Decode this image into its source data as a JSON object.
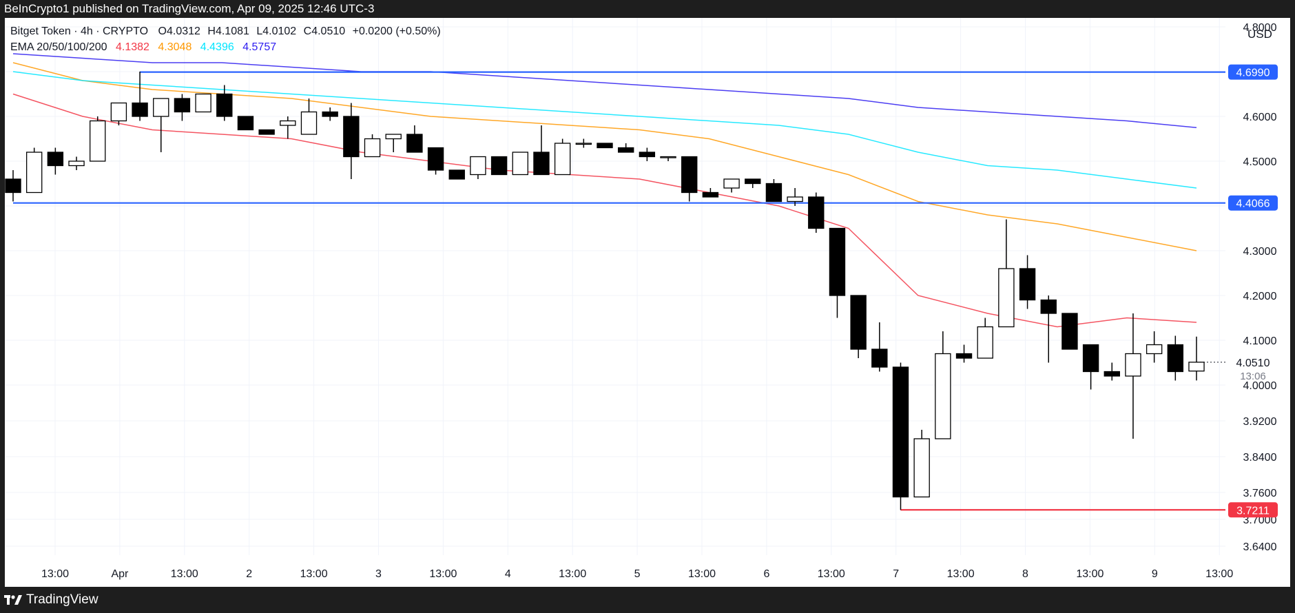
{
  "header": {
    "publisher_line": "BeInCrypto1 published on TradingView.com, Apr 09, 2025 12:46 UTC-3"
  },
  "legend": {
    "symbol_line": "Bitget Token · 4h · CRYPTO",
    "open": "O4.0312",
    "high": "H4.1081",
    "low": "L4.0102",
    "close": "C4.0510",
    "change": "+0.0200 (+0.50%)",
    "ema_label": "EMA 20/50/100/200",
    "ema_values": [
      {
        "value": "4.1382",
        "color": "#f23645"
      },
      {
        "value": "4.3048",
        "color": "#ff9800"
      },
      {
        "value": "4.4396",
        "color": "#00e5ff"
      },
      {
        "value": "4.5757",
        "color": "#2c1bf0"
      }
    ]
  },
  "footer": {
    "brand": "TradingView"
  },
  "chart_data": {
    "type": "candlestick",
    "currency": "USD",
    "ylim": [
      3.62,
      4.82
    ],
    "y_ticks": [
      "3.6400",
      "3.7000",
      "3.7600",
      "3.8400",
      "3.9200",
      "4.0000",
      "4.1000",
      "4.2000",
      "4.3000",
      "4.4000",
      "4.5000",
      "4.6000",
      "4.7000",
      "4.8000"
    ],
    "x_ticks": [
      "13:00",
      "Apr",
      "13:00",
      "2",
      "13:00",
      "3",
      "13:00",
      "4",
      "13:00",
      "5",
      "13:00",
      "6",
      "13:00",
      "7",
      "13:00",
      "8",
      "13:00",
      "9",
      "13:00"
    ],
    "candles": [
      {
        "o": 4.46,
        "h": 4.48,
        "l": 4.41,
        "c": 4.43
      },
      {
        "o": 4.43,
        "h": 4.53,
        "l": 4.43,
        "c": 4.52
      },
      {
        "o": 4.52,
        "h": 4.53,
        "l": 4.47,
        "c": 4.49
      },
      {
        "o": 4.49,
        "h": 4.51,
        "l": 4.48,
        "c": 4.5
      },
      {
        "o": 4.5,
        "h": 4.6,
        "l": 4.5,
        "c": 4.59
      },
      {
        "o": 4.59,
        "h": 4.63,
        "l": 4.58,
        "c": 4.63
      },
      {
        "o": 4.63,
        "h": 4.7,
        "l": 4.59,
        "c": 4.6
      },
      {
        "o": 4.6,
        "h": 4.64,
        "l": 4.52,
        "c": 4.64
      },
      {
        "o": 4.64,
        "h": 4.65,
        "l": 4.59,
        "c": 4.61
      },
      {
        "o": 4.61,
        "h": 4.65,
        "l": 4.61,
        "c": 4.65
      },
      {
        "o": 4.65,
        "h": 4.67,
        "l": 4.59,
        "c": 4.6
      },
      {
        "o": 4.6,
        "h": 4.6,
        "l": 4.57,
        "c": 4.57
      },
      {
        "o": 4.57,
        "h": 4.57,
        "l": 4.56,
        "c": 4.56
      },
      {
        "o": 4.58,
        "h": 4.6,
        "l": 4.55,
        "c": 4.59
      },
      {
        "o": 4.56,
        "h": 4.64,
        "l": 4.56,
        "c": 4.61
      },
      {
        "o": 4.61,
        "h": 4.62,
        "l": 4.59,
        "c": 4.6
      },
      {
        "o": 4.6,
        "h": 4.63,
        "l": 4.46,
        "c": 4.51
      },
      {
        "o": 4.51,
        "h": 4.56,
        "l": 4.51,
        "c": 4.55
      },
      {
        "o": 4.55,
        "h": 4.56,
        "l": 4.52,
        "c": 4.56
      },
      {
        "o": 4.56,
        "h": 4.58,
        "l": 4.52,
        "c": 4.52
      },
      {
        "o": 4.53,
        "h": 4.53,
        "l": 4.47,
        "c": 4.48
      },
      {
        "o": 4.48,
        "h": 4.48,
        "l": 4.46,
        "c": 4.46
      },
      {
        "o": 4.47,
        "h": 4.51,
        "l": 4.46,
        "c": 4.51
      },
      {
        "o": 4.51,
        "h": 4.51,
        "l": 4.47,
        "c": 4.47
      },
      {
        "o": 4.47,
        "h": 4.52,
        "l": 4.47,
        "c": 4.52
      },
      {
        "o": 4.52,
        "h": 4.58,
        "l": 4.47,
        "c": 4.47
      },
      {
        "o": 4.47,
        "h": 4.55,
        "l": 4.47,
        "c": 4.54
      },
      {
        "o": 4.54,
        "h": 4.55,
        "l": 4.53,
        "c": 4.54
      },
      {
        "o": 4.54,
        "h": 4.54,
        "l": 4.53,
        "c": 4.53
      },
      {
        "o": 4.53,
        "h": 4.54,
        "l": 4.52,
        "c": 4.52
      },
      {
        "o": 4.52,
        "h": 4.53,
        "l": 4.5,
        "c": 4.51
      },
      {
        "o": 4.51,
        "h": 4.51,
        "l": 4.5,
        "c": 4.51
      },
      {
        "o": 4.51,
        "h": 4.51,
        "l": 4.41,
        "c": 4.43
      },
      {
        "o": 4.43,
        "h": 4.44,
        "l": 4.42,
        "c": 4.42
      },
      {
        "o": 4.44,
        "h": 4.46,
        "l": 4.43,
        "c": 4.46
      },
      {
        "o": 4.46,
        "h": 4.46,
        "l": 4.44,
        "c": 4.45
      },
      {
        "o": 4.45,
        "h": 4.46,
        "l": 4.41,
        "c": 4.41
      },
      {
        "o": 4.41,
        "h": 4.44,
        "l": 4.4,
        "c": 4.42
      },
      {
        "o": 4.42,
        "h": 4.43,
        "l": 4.34,
        "c": 4.35
      },
      {
        "o": 4.35,
        "h": 4.35,
        "l": 4.15,
        "c": 4.2
      },
      {
        "o": 4.2,
        "h": 4.2,
        "l": 4.06,
        "c": 4.08
      },
      {
        "o": 4.08,
        "h": 4.14,
        "l": 4.03,
        "c": 4.04
      },
      {
        "o": 4.04,
        "h": 4.05,
        "l": 3.721,
        "c": 3.75
      },
      {
        "o": 3.75,
        "h": 3.9,
        "l": 3.75,
        "c": 3.88
      },
      {
        "o": 3.88,
        "h": 4.12,
        "l": 3.88,
        "c": 4.07
      },
      {
        "o": 4.07,
        "h": 4.09,
        "l": 4.05,
        "c": 4.06
      },
      {
        "o": 4.06,
        "h": 4.15,
        "l": 4.06,
        "c": 4.13
      },
      {
        "o": 4.13,
        "h": 4.37,
        "l": 4.13,
        "c": 4.26
      },
      {
        "o": 4.26,
        "h": 4.29,
        "l": 4.17,
        "c": 4.19
      },
      {
        "o": 4.19,
        "h": 4.2,
        "l": 4.05,
        "c": 4.16
      },
      {
        "o": 4.16,
        "h": 4.16,
        "l": 4.08,
        "c": 4.08
      },
      {
        "o": 4.09,
        "h": 4.09,
        "l": 3.99,
        "c": 4.03
      },
      {
        "o": 4.03,
        "h": 4.05,
        "l": 4.01,
        "c": 4.02
      },
      {
        "o": 4.02,
        "h": 4.16,
        "l": 3.88,
        "c": 4.07
      },
      {
        "o": 4.07,
        "h": 4.12,
        "l": 4.05,
        "c": 4.09
      },
      {
        "o": 4.09,
        "h": 4.11,
        "l": 4.01,
        "c": 4.03
      },
      {
        "o": 4.0312,
        "h": 4.1081,
        "l": 4.0102,
        "c": 4.051
      }
    ],
    "ema": [
      {
        "name": "EMA 20",
        "color": "#f23645",
        "values": [
          4.65,
          4.6,
          4.57,
          4.56,
          4.55,
          4.52,
          4.5,
          4.48,
          4.47,
          4.46,
          4.43,
          4.4,
          4.35,
          4.2,
          4.16,
          4.13,
          4.15,
          4.14
        ]
      },
      {
        "name": "EMA 50",
        "color": "#ff9800",
        "values": [
          4.72,
          4.68,
          4.66,
          4.65,
          4.64,
          4.62,
          4.6,
          4.59,
          4.58,
          4.57,
          4.55,
          4.51,
          4.47,
          4.41,
          4.38,
          4.36,
          4.33,
          4.3
        ]
      },
      {
        "name": "EMA 100",
        "color": "#00e5ff",
        "values": [
          4.7,
          4.68,
          4.67,
          4.66,
          4.65,
          4.64,
          4.63,
          4.62,
          4.61,
          4.6,
          4.59,
          4.58,
          4.56,
          4.52,
          4.49,
          4.48,
          4.46,
          4.44
        ]
      },
      {
        "name": "EMA 200",
        "color": "#2c1bf0",
        "values": [
          4.74,
          4.73,
          4.72,
          4.72,
          4.71,
          4.7,
          4.7,
          4.69,
          4.68,
          4.67,
          4.66,
          4.65,
          4.64,
          4.62,
          4.61,
          4.6,
          4.59,
          4.575
        ]
      }
    ],
    "levels": [
      {
        "label": "4.6990",
        "value": 4.699,
        "color": "#2962ff"
      },
      {
        "label": "4.4066",
        "value": 4.4066,
        "color": "#2962ff"
      },
      {
        "label": "3.7211",
        "value": 3.7211,
        "color": "#f23645"
      }
    ],
    "last_price": {
      "label": "4.0510",
      "countdown": "13:06",
      "value": 4.051
    }
  }
}
